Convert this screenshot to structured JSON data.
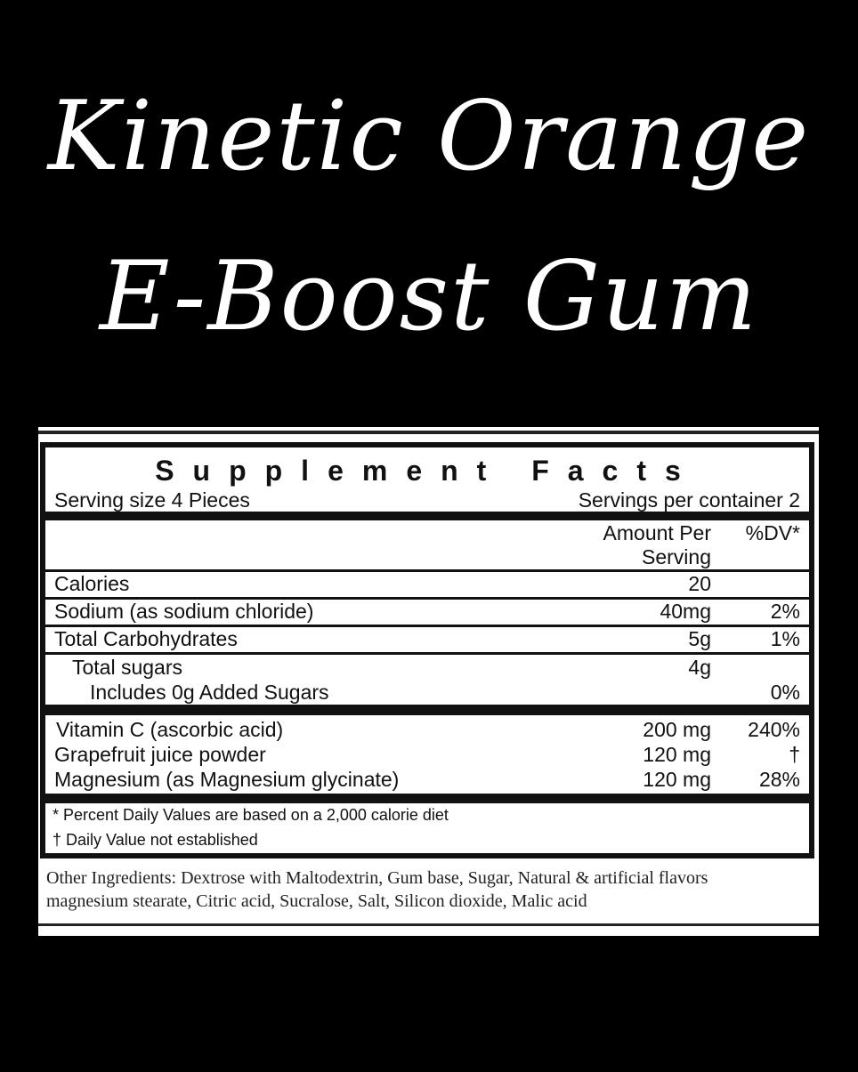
{
  "product_title": {
    "line1": "Kinetic Orange",
    "line2": "E-Boost Gum"
  },
  "label": {
    "heading": "Supplement Facts",
    "serving_size": "Serving size 4 Pieces",
    "servings_per_container": "Servings per container 2",
    "col_amount_line1": "Amount Per",
    "col_amount_line2": "Serving",
    "col_dv": "%DV*",
    "rows": [
      {
        "name": "Calories",
        "amount": "20",
        "dv": ""
      },
      {
        "name": "Sodium (as sodium chloride)",
        "amount": "40mg",
        "dv": "2%"
      },
      {
        "name": "Total Carbohydrates",
        "amount": "5g",
        "dv": "1%"
      },
      {
        "name": "Total sugars",
        "amount": "4g",
        "dv": ""
      },
      {
        "name": "Includes 0g Added Sugars",
        "amount": "",
        "dv": "0%"
      }
    ],
    "ingredients": [
      {
        "name": "Vitamin C (ascorbic acid)",
        "amount": "200 mg",
        "dv": "240%"
      },
      {
        "name": "Grapefruit juice powder",
        "amount": "120 mg",
        "dv": "†"
      },
      {
        "name": "Magnesium (as Magnesium glycinate)",
        "amount": "120 mg",
        "dv": "28%"
      }
    ],
    "footnote1": "* Percent Daily Values are based on a 2,000 calorie diet",
    "footnote2": "† Daily Value not established",
    "other_ingredients_line1": "Other Ingredients:  Dextrose with Maltodextrin, Gum base, Sugar, Natural & artificial flavors",
    "other_ingredients_line2": "magnesium stearate, Citric acid, Sucralose, Salt, Silicon dioxide, Malic acid"
  }
}
